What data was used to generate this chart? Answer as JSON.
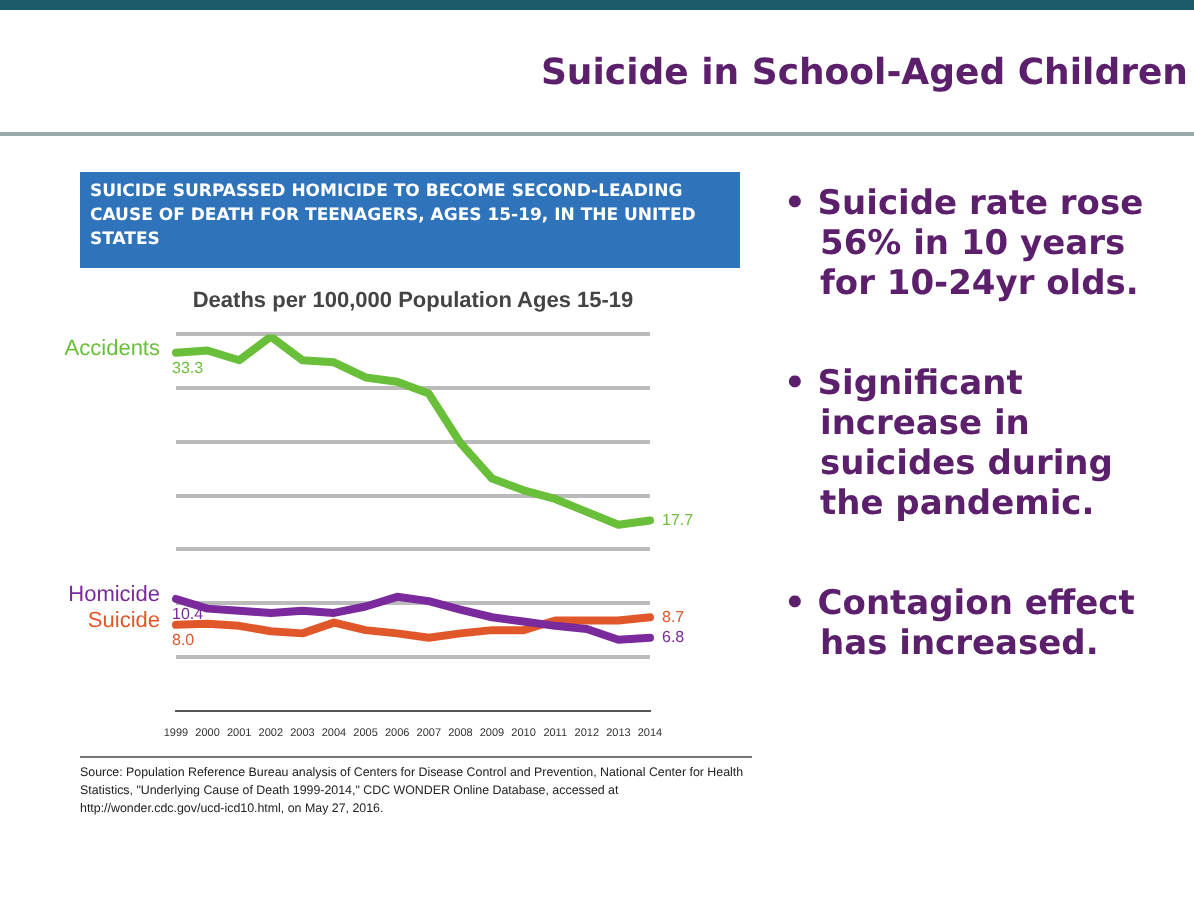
{
  "chart_data": {
    "type": "line",
    "title": "SUICIDE SURPASSED HOMICIDE TO BECOME SECOND-LEADING CAUSE OF DEATH FOR TEENAGERS, AGES 15-19, IN THE UNITED STATES",
    "subtitle": "Deaths per 100,000 Population Ages 15-19",
    "annotations": [
      "Suicide in School-Aged Children",
      "• Suicide rate rose 56% in 10 years for 10-24yr olds.",
      "• Significant increase in suicides during the pandemic.",
      "• Contagion effect has increased.",
      "Source: Population Reference Bureau analysis of Centers for Disease Control and Prevention, National Center for Health Statistics, \"Underlying Cause of Death 1999-2014,\" CDC WONDER Online Database, accessed at http://wonder.cdc.gov/ucd-icd10.html, on May 27, 2016."
    ],
    "categories": [
      "1999",
      "2000",
      "2001",
      "2002",
      "2003",
      "2004",
      "2005",
      "2006",
      "2007",
      "2008",
      "2009",
      "2010",
      "2011",
      "2012",
      "2013",
      "2014"
    ],
    "series": [
      {
        "name": "Accidents",
        "color": "#6abf3a",
        "values": [
          33.3,
          33.5,
          32.6,
          34.8,
          32.6,
          32.4,
          31.0,
          30.6,
          29.5,
          24.9,
          21.6,
          20.5,
          19.7,
          18.5,
          17.3,
          17.7
        ],
        "value_labels": [
          "33.3",
          null,
          null,
          null,
          null,
          null,
          null,
          null,
          null,
          null,
          null,
          null,
          null,
          null,
          null,
          "17.7"
        ]
      },
      {
        "name": "Homicide",
        "color": "#7a2a9c",
        "values": [
          10.4,
          9.5,
          9.3,
          9.1,
          9.3,
          9.1,
          9.7,
          10.6,
          10.2,
          9.4,
          8.7,
          8.3,
          7.9,
          7.6,
          6.6,
          6.8
        ],
        "value_labels": [
          "10.4",
          null,
          null,
          null,
          null,
          null,
          null,
          null,
          null,
          null,
          null,
          null,
          null,
          null,
          null,
          "6.8"
        ]
      },
      {
        "name": "Suicide",
        "color": "#e0582a",
        "values": [
          8.0,
          8.1,
          7.9,
          7.4,
          7.2,
          8.2,
          7.5,
          7.2,
          6.8,
          7.2,
          7.5,
          7.5,
          8.4,
          8.4,
          8.4,
          8.7
        ],
        "value_labels": [
          "8.0",
          null,
          null,
          null,
          null,
          null,
          null,
          null,
          null,
          null,
          null,
          null,
          null,
          null,
          null,
          "8.7"
        ]
      }
    ],
    "ylim": [
      0,
      35
    ],
    "yticks": [
      {
        "value": 5,
        "label": null
      },
      {
        "value": 10,
        "label": null
      },
      {
        "value": 15,
        "label": null
      },
      {
        "value": 20,
        "label": null
      },
      {
        "value": 25,
        "label": null
      },
      {
        "value": 30,
        "label": null
      },
      {
        "value": 35,
        "label": null
      }
    ],
    "grid": "y",
    "legend": false,
    "tick_labels": "x",
    "marker": "none",
    "line_style": "solid"
  }
}
